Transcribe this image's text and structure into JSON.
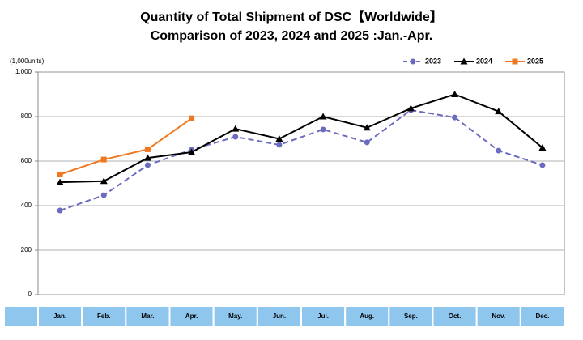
{
  "chart_data": {
    "type": "line",
    "title": "Quantity of Total Shipment of DSC【Worldwide】",
    "subtitle": "Comparison of 2023, 2024 and 2025 :Jan.-Apr.",
    "y_label": "(1,000units)",
    "categories": [
      "Jan.",
      "Feb.",
      "Mar.",
      "Apr.",
      "May.",
      "Jun.",
      "Jul.",
      "Aug.",
      "Sep.",
      "Oct.",
      "Nov.",
      "Dec."
    ],
    "series": [
      {
        "name": "2023",
        "color": "#6b6bbf",
        "dashed": true,
        "marker": "circle",
        "values": [
          378,
          447,
          582,
          651,
          709,
          673,
          742,
          684,
          829,
          796,
          647,
          582
        ]
      },
      {
        "name": "2024",
        "color": "#000000",
        "dashed": false,
        "marker": "triangle",
        "values": [
          505,
          510,
          614,
          640,
          745,
          700,
          800,
          750,
          837,
          900,
          823,
          660
        ]
      },
      {
        "name": "2025",
        "color": "#f07820",
        "dashed": false,
        "marker": "square",
        "values": [
          540,
          607,
          653,
          792,
          null,
          null,
          null,
          null,
          null,
          null,
          null,
          null
        ]
      }
    ],
    "ylim": [
      0,
      1000
    ],
    "yticks": [
      0,
      200,
      400,
      600,
      800,
      {
        "value": 1000,
        "label": "1,000"
      }
    ],
    "grid": true,
    "legend": "top-right"
  }
}
